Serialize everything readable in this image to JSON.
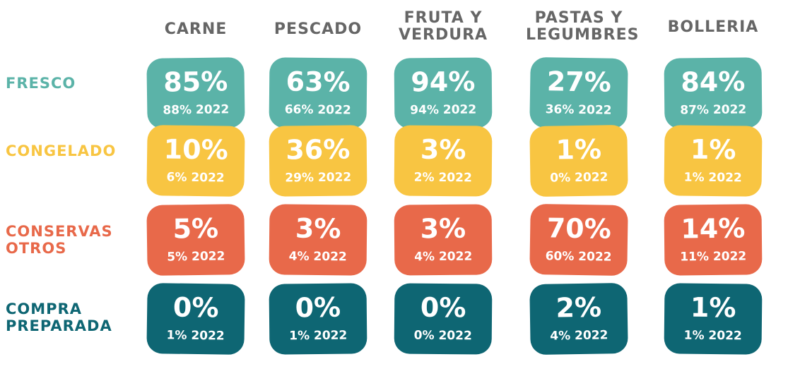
{
  "colors": {
    "fresco": "#5bb3a8",
    "congelado": "#f8c542",
    "conservas": "#e8694a",
    "compra": "#0e6673",
    "header": "#666666"
  },
  "chart_data": {
    "type": "table",
    "columns": [
      "CARNE",
      "PESCADO",
      "FRUTA Y\nVERDURA",
      "PASTAS Y\nLEGUMBRES",
      "BOLLERIA"
    ],
    "rows": [
      {
        "label": "FRESCO",
        "color_key": "fresco",
        "values": [
          "85%",
          "63%",
          "94%",
          "27%",
          "84%"
        ],
        "prev": [
          "88% 2022",
          "66% 2022",
          "94% 2022",
          "36% 2022",
          "87% 2022"
        ]
      },
      {
        "label": "CONGELADO",
        "color_key": "congelado",
        "values": [
          "10%",
          "36%",
          "3%",
          "1%",
          "1%"
        ],
        "prev": [
          "6% 2022",
          "29% 2022",
          "2% 2022",
          "0% 2022",
          "1% 2022"
        ]
      },
      {
        "label": "CONSERVAS\nOTROS",
        "color_key": "conservas",
        "values": [
          "5%",
          "3%",
          "3%",
          "70%",
          "14%"
        ],
        "prev": [
          "5% 2022",
          "4% 2022",
          "4% 2022",
          "60% 2022",
          "11% 2022"
        ]
      },
      {
        "label": "COMPRA\nPREPARADA",
        "color_key": "compra",
        "values": [
          "0%",
          "0%",
          "0%",
          "2%",
          "1%"
        ],
        "prev": [
          "1% 2022",
          "1% 2022",
          "0% 2022",
          "4% 2022",
          "1% 2022"
        ]
      }
    ]
  }
}
